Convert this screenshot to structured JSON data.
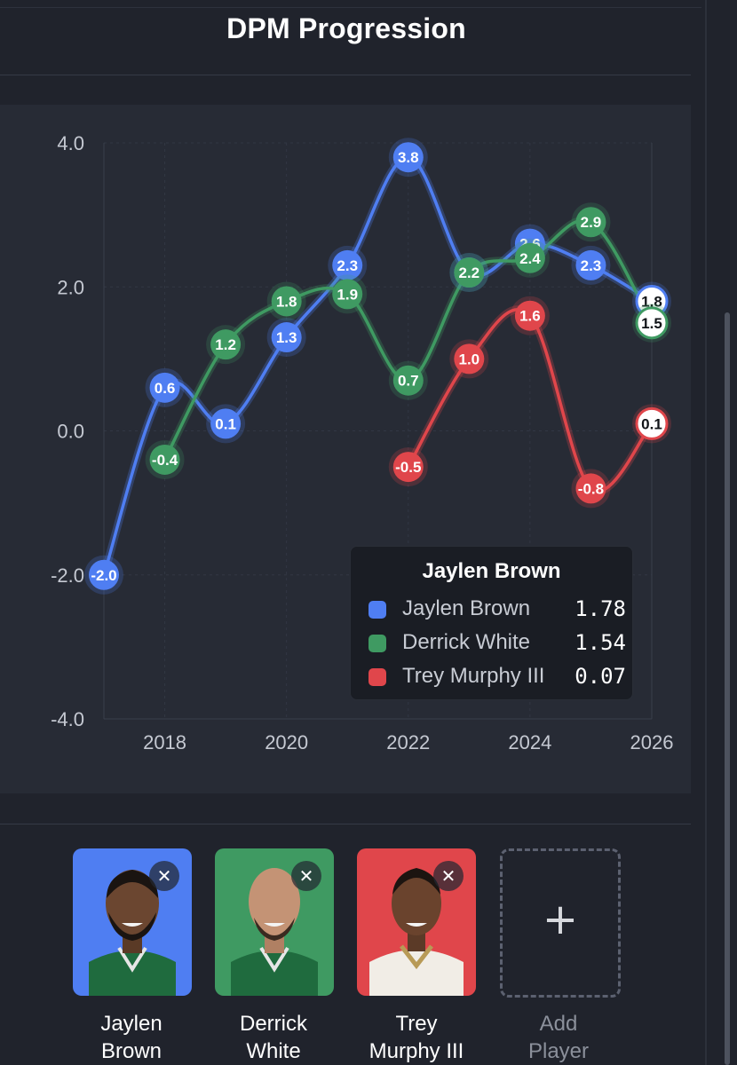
{
  "header": {
    "title": "DPM Progression"
  },
  "chart_data": {
    "type": "line",
    "title": "DPM Progression",
    "x_ticks": [
      "2018",
      "2020",
      "2022",
      "2024",
      "2026"
    ],
    "y_ticks": [
      "4.0",
      "2.0",
      "0.0",
      "-2.0",
      "-4.0"
    ],
    "xlim": [
      2017,
      2026
    ],
    "ylim": [
      -4.0,
      4.0
    ],
    "grid": true,
    "series": [
      {
        "name": "Jaylen Brown",
        "color": "#4f7ef2",
        "x": [
          2017,
          2018,
          2019,
          2020,
          2021,
          2022,
          2023,
          2024,
          2025,
          2026
        ],
        "values": [
          -2.0,
          0.6,
          0.1,
          1.3,
          2.3,
          3.8,
          2.2,
          2.6,
          2.3,
          1.8
        ],
        "labels": [
          "-2.0",
          "0.6",
          "0.1",
          "1.3",
          "2.3",
          "3.8",
          "2.2",
          "2.6",
          "2.3",
          "1.8"
        ]
      },
      {
        "name": "Derrick White",
        "color": "#3f9a62",
        "x": [
          2018,
          2019,
          2020,
          2021,
          2022,
          2023,
          2024,
          2025,
          2026
        ],
        "values": [
          -0.4,
          1.2,
          1.8,
          1.9,
          0.7,
          2.2,
          2.4,
          2.9,
          1.5
        ],
        "labels": [
          "-0.4",
          "1.2",
          "1.8",
          "1.9",
          "0.7",
          "2.2",
          "2.4",
          "2.9",
          "1.5"
        ]
      },
      {
        "name": "Trey Murphy III",
        "color": "#e0464b",
        "x": [
          2022,
          2023,
          2024,
          2025,
          2026
        ],
        "values": [
          -0.5,
          1.0,
          1.6,
          -0.8,
          0.1
        ],
        "labels": [
          "-0.5",
          "1.0",
          "1.6",
          "-0.8",
          "0.1"
        ]
      }
    ]
  },
  "tooltip": {
    "title": "Jaylen Brown",
    "rows": [
      {
        "name": "Jaylen Brown",
        "value": "1.78",
        "color": "#4f7ef2"
      },
      {
        "name": "Derrick White",
        "value": "1.54",
        "color": "#3f9a62"
      },
      {
        "name": "Trey Murphy III",
        "value": "0.07",
        "color": "#e0464b"
      }
    ]
  },
  "players": [
    {
      "first": "Jaylen",
      "last": "Brown",
      "color": "#4f7ef2",
      "remove_icon": "✕"
    },
    {
      "first": "Derrick",
      "last": "White",
      "color": "#3f9a62",
      "remove_icon": "✕"
    },
    {
      "first": "Trey",
      "last": "Murphy III",
      "color": "#e0464b",
      "remove_icon": "✕"
    }
  ],
  "add_player": {
    "icon": "+",
    "line1": "Add",
    "line2": "Player"
  }
}
